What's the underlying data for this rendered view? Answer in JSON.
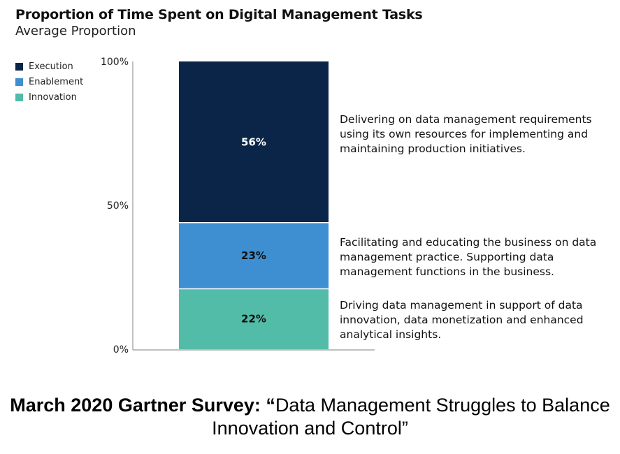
{
  "chart_data": {
    "type": "bar",
    "stacked": true,
    "title": "Proportion of Time Spent on Digital Management Tasks",
    "subtitle": "Average Proportion",
    "ylim": [
      0,
      100
    ],
    "y_ticks": [
      "0%",
      "50%",
      "100%"
    ],
    "y_tick_values": [
      0,
      50,
      100
    ],
    "series": [
      {
        "name": "Execution",
        "value": 56,
        "label": "56%",
        "color": "#0b2548",
        "label_color": "#ffffff",
        "description": "Delivering on data management requirements using its own resources for implementing and maintaining production initiatives."
      },
      {
        "name": "Enablement",
        "value": 23,
        "label": "23%",
        "color": "#3d8fd1",
        "label_color": "#111111",
        "description": "Facilitating and educating the business on data management practice. Supporting data management functions in the business."
      },
      {
        "name": "Innovation",
        "value": 22,
        "label": "22%",
        "color": "#52bca8",
        "label_color": "#111111",
        "description": "Driving data management in support of data innovation, data monetization and enhanced analytical insights."
      }
    ],
    "legend_position": "top-left"
  },
  "footer": {
    "bold_part": "March 2020 Gartner Survey: “",
    "regular_part": "Data Management Struggles to Balance Innovation and Control”"
  }
}
